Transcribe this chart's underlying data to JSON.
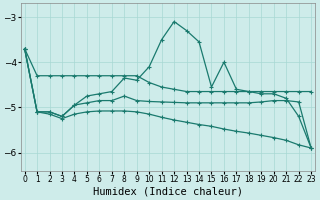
{
  "xlabel": "Humidex (Indice chaleur)",
  "bg_color": "#ceecea",
  "grid_color": "#a8d8d4",
  "line_color": "#1a7a6e",
  "x_values": [
    0,
    1,
    2,
    3,
    4,
    5,
    6,
    7,
    8,
    9,
    10,
    11,
    12,
    13,
    14,
    15,
    16,
    17,
    18,
    19,
    20,
    21,
    22,
    23
  ],
  "series1": [
    -3.7,
    -4.3,
    -4.3,
    -4.3,
    -4.3,
    -4.3,
    -4.3,
    -4.3,
    -4.3,
    -4.3,
    -4.45,
    -4.55,
    -4.6,
    -4.65,
    -4.65,
    -4.65,
    -4.65,
    -4.65,
    -4.65,
    -4.65,
    -4.65,
    -4.65,
    -4.65,
    -4.65
  ],
  "series2": [
    -3.7,
    -5.1,
    -5.1,
    -5.2,
    -4.95,
    -4.75,
    -4.7,
    -4.65,
    -4.35,
    -4.4,
    -4.1,
    -3.5,
    -3.1,
    -3.3,
    -3.55,
    -4.55,
    -4.0,
    -4.6,
    -4.65,
    -4.7,
    -4.7,
    -4.8,
    -5.2,
    -5.9
  ],
  "series3": [
    -3.7,
    -5.1,
    -5.1,
    -5.2,
    -4.95,
    -4.9,
    -4.85,
    -4.85,
    -4.75,
    -4.85,
    -4.87,
    -4.88,
    -4.89,
    -4.9,
    -4.9,
    -4.9,
    -4.9,
    -4.9,
    -4.9,
    -4.88,
    -4.85,
    -4.85,
    -4.88,
    -5.9
  ],
  "series4": [
    -3.7,
    -5.1,
    -5.15,
    -5.25,
    -5.15,
    -5.1,
    -5.08,
    -5.08,
    -5.08,
    -5.1,
    -5.15,
    -5.22,
    -5.28,
    -5.33,
    -5.38,
    -5.42,
    -5.48,
    -5.53,
    -5.57,
    -5.62,
    -5.67,
    -5.73,
    -5.83,
    -5.9
  ],
  "ylim": [
    -6.4,
    -2.7
  ],
  "yticks": [
    -6,
    -5,
    -4,
    -3
  ],
  "xlim": [
    -0.3,
    23.3
  ],
  "figsize": [
    3.2,
    2.0
  ],
  "dpi": 100
}
